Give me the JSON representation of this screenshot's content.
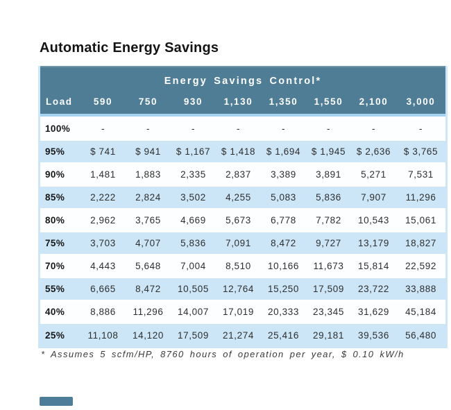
{
  "chart_data": {
    "type": "table",
    "title": "Automatic Energy Savings",
    "group_header": "Energy Savings Control*",
    "columns": [
      "Load",
      "590",
      "750",
      "930",
      "1,130",
      "1,350",
      "1,550",
      "2,100",
      "3,000"
    ],
    "rows": [
      [
        "100%",
        "-",
        "-",
        "-",
        "-",
        "-",
        "-",
        "-",
        "-"
      ],
      [
        "95%",
        "$ 741",
        "$ 941",
        "$ 1,167",
        "$ 1,418",
        "$ 1,694",
        "$ 1,945",
        "$ 2,636",
        "$ 3,765"
      ],
      [
        "90%",
        "1,481",
        "1,883",
        "2,335",
        "2,837",
        "3,389",
        "3,891",
        "5,271",
        "7,531"
      ],
      [
        "85%",
        "2,222",
        "2,824",
        "3,502",
        "4,255",
        "5,083",
        "5,836",
        "7,907",
        "11,296"
      ],
      [
        "80%",
        "2,962",
        "3,765",
        "4,669",
        "5,673",
        "6,778",
        "7,782",
        "10,543",
        "15,061"
      ],
      [
        "75%",
        "3,703",
        "4,707",
        "5,836",
        "7,091",
        "8,472",
        "9,727",
        "13,179",
        "18,827"
      ],
      [
        "70%",
        "4,443",
        "5,648",
        "7,004",
        "8,510",
        "10,166",
        "11,673",
        "15,814",
        "22,592"
      ],
      [
        "55%",
        "6,665",
        "8,472",
        "10,505",
        "12,764",
        "15,250",
        "17,509",
        "23,722",
        "33,888"
      ],
      [
        "40%",
        "8,886",
        "11,296",
        "14,007",
        "17,019",
        "20,333",
        "23,345",
        "31,629",
        "45,184"
      ],
      [
        "25%",
        "11,108",
        "14,120",
        "17,509",
        "21,274",
        "25,416",
        "29,181",
        "39,536",
        "56,480"
      ]
    ],
    "footnote": "* Assumes 5 scfm/HP, 8760 hours of operation per year, $ 0.10 kW/h",
    "layout": {
      "row_striping": "alternating white / light blue",
      "legend": "none",
      "grid": "row separators only"
    }
  },
  "colors": {
    "header_bg": "#4f7d96",
    "header_text": "#ffffff",
    "strip": "#a6d3f0",
    "row_blue": "#cce6f7",
    "row_white": "#fdfeff",
    "accent": "#4e7d99"
  }
}
